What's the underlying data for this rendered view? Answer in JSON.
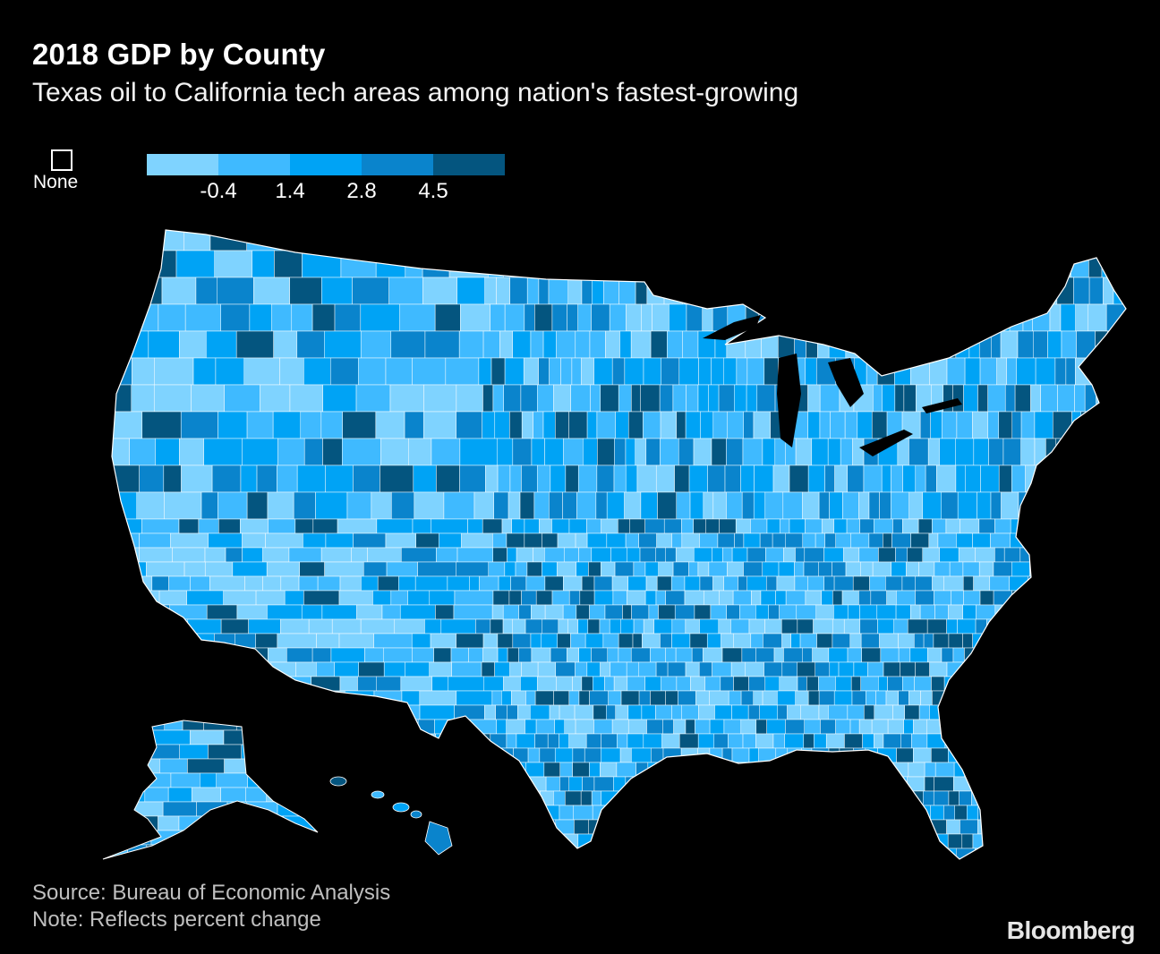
{
  "header": {
    "title": "2018 GDP by County",
    "subtitle": "Texas oil to California tech areas among nation's fastest-growing"
  },
  "legend": {
    "none_label": "None",
    "colors": [
      "#7fd3ff",
      "#3fbaff",
      "#00a3f5",
      "#0a84cc",
      "#04557f"
    ],
    "ticks": [
      "-0.4",
      "1.4",
      "2.8",
      "4.5"
    ],
    "none_color": "#000000"
  },
  "map": {
    "type": "choropleth",
    "geography": "US counties",
    "metric": "percent change in GDP, 2018",
    "regions": [
      "contiguous-us",
      "alaska",
      "hawaii"
    ],
    "border_color": "#ffffff",
    "background": "#000000"
  },
  "footer": {
    "source": "Source: Bureau of Economic Analysis",
    "note": "Note: Reflects percent change",
    "brand": "Bloomberg"
  }
}
